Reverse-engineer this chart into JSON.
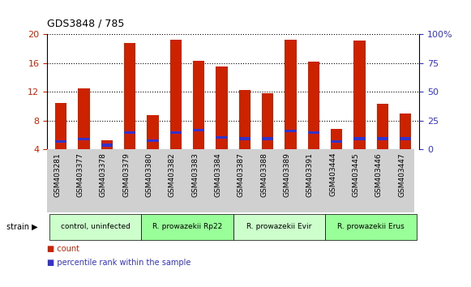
{
  "title": "GDS3848 / 785",
  "samples": [
    "GSM403281",
    "GSM403377",
    "GSM403378",
    "GSM403379",
    "GSM403380",
    "GSM403382",
    "GSM403383",
    "GSM403384",
    "GSM403387",
    "GSM403388",
    "GSM403389",
    "GSM403391",
    "GSM403444",
    "GSM403445",
    "GSM403446",
    "GSM403447"
  ],
  "count_values": [
    10.5,
    12.5,
    5.2,
    18.8,
    8.8,
    19.3,
    16.3,
    15.5,
    12.3,
    11.8,
    19.3,
    16.2,
    6.8,
    19.1,
    10.3,
    9.0
  ],
  "percentile_bottom": [
    4.9,
    5.2,
    4.4,
    6.2,
    5.0,
    6.2,
    6.5,
    5.5,
    5.3,
    5.3,
    6.4,
    6.2,
    4.9,
    5.3,
    5.3,
    5.3
  ],
  "percentile_height": [
    0.35,
    0.35,
    0.35,
    0.35,
    0.35,
    0.35,
    0.35,
    0.35,
    0.35,
    0.35,
    0.35,
    0.35,
    0.35,
    0.35,
    0.35,
    0.35
  ],
  "bar_bottom": 4.0,
  "ylim_left": [
    4,
    20
  ],
  "ylim_right": [
    0,
    100
  ],
  "yticks_left": [
    4,
    8,
    12,
    16,
    20
  ],
  "yticks_right": [
    0,
    25,
    50,
    75,
    100
  ],
  "ytick_labels_right": [
    "0",
    "25",
    "50",
    "75",
    "100%"
  ],
  "red_color": "#CC2200",
  "blue_color": "#3333CC",
  "bg_color": "#ffffff",
  "grid_color": "#000000",
  "strain_groups": [
    {
      "label": "control, uninfected",
      "start": 0,
      "end": 3,
      "color": "#ccffcc"
    },
    {
      "label": "R. prowazekii Rp22",
      "start": 4,
      "end": 7,
      "color": "#99ff99"
    },
    {
      "label": "R. prowazekii Evir",
      "start": 8,
      "end": 11,
      "color": "#ccffcc"
    },
    {
      "label": "R. prowazekii Erus",
      "start": 12,
      "end": 15,
      "color": "#99ff99"
    }
  ],
  "legend_items": [
    {
      "label": "count",
      "color": "#CC2200"
    },
    {
      "label": "percentile rank within the sample",
      "color": "#3333CC"
    }
  ]
}
